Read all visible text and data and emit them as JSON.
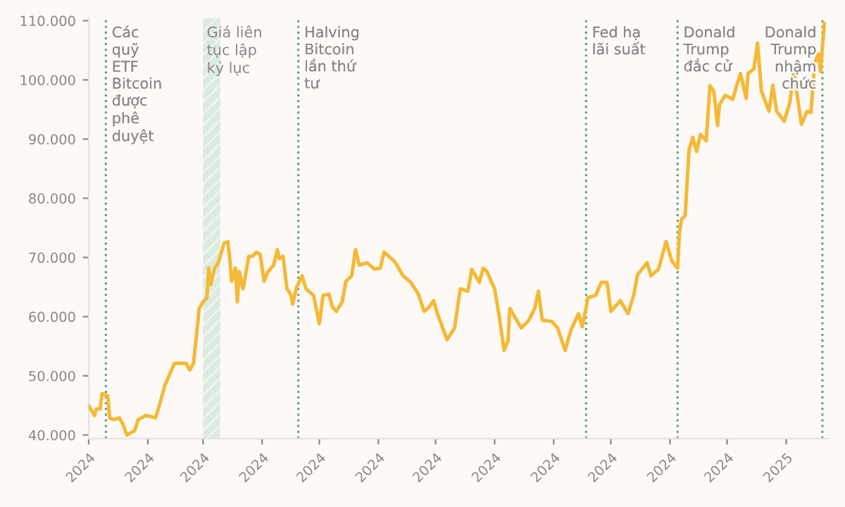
{
  "chart_data": {
    "type": "line",
    "x": [
      "2024-01-01",
      "2024-01-04",
      "2024-01-05",
      "2024-01-07",
      "2024-01-08",
      "2024-01-11",
      "2024-01-12",
      "2024-01-14",
      "2024-01-17",
      "2024-01-19",
      "2024-01-21",
      "2024-01-25",
      "2024-01-27",
      "2024-01-31",
      "2024-02-05",
      "2024-02-07",
      "2024-02-10",
      "2024-02-12",
      "2024-02-15",
      "2024-02-21",
      "2024-02-23",
      "2024-02-25",
      "2024-02-28",
      "2024-03-01",
      "2024-03-03",
      "2024-03-04",
      "2024-03-05",
      "2024-03-07",
      "2024-03-09",
      "2024-03-12",
      "2024-03-14",
      "2024-03-15",
      "2024-03-16",
      "2024-03-18",
      "2024-03-19",
      "2024-03-20",
      "2024-03-22",
      "2024-03-25",
      "2024-03-27",
      "2024-03-29",
      "2024-03-31",
      "2024-04-02",
      "2024-04-04",
      "2024-04-07",
      "2024-04-09",
      "2024-04-10",
      "2024-04-12",
      "2024-04-14",
      "2024-04-16",
      "2024-04-17",
      "2024-04-19",
      "2024-04-22",
      "2024-04-24",
      "2024-04-28",
      "2024-05-01",
      "2024-05-03",
      "2024-05-06",
      "2024-05-08",
      "2024-05-10",
      "2024-05-13",
      "2024-05-15",
      "2024-05-18",
      "2024-05-20",
      "2024-05-22",
      "2024-05-26",
      "2024-05-30",
      "2024-06-02",
      "2024-06-04",
      "2024-06-08",
      "2024-06-10",
      "2024-06-14",
      "2024-06-18",
      "2024-06-22",
      "2024-06-25",
      "2024-06-27",
      "2024-06-30",
      "2024-07-02",
      "2024-07-06",
      "2024-07-07",
      "2024-07-11",
      "2024-07-14",
      "2024-07-18",
      "2024-07-20",
      "2024-07-24",
      "2024-07-26",
      "2024-07-28",
      "2024-08-01",
      "2024-08-03",
      "2024-08-06",
      "2024-08-08",
      "2024-08-09",
      "2024-08-12",
      "2024-08-15",
      "2024-08-19",
      "2024-08-22",
      "2024-08-24",
      "2024-08-26",
      "2024-08-31",
      "2024-09-03",
      "2024-09-07",
      "2024-09-10",
      "2024-09-14",
      "2024-09-16",
      "2024-09-19",
      "2024-09-23",
      "2024-09-26",
      "2024-09-29",
      "2024-10-01",
      "2024-10-06",
      "2024-10-10",
      "2024-10-13",
      "2024-10-15",
      "2024-10-20",
      "2024-10-22",
      "2024-10-26",
      "2024-10-30",
      "2024-11-02",
      "2024-11-05",
      "2024-11-06",
      "2024-11-07",
      "2024-11-09",
      "2024-11-11",
      "2024-11-13",
      "2024-11-15",
      "2024-11-17",
      "2024-11-20",
      "2024-11-22",
      "2024-11-24",
      "2024-11-26",
      "2024-11-27",
      "2024-11-30",
      "2024-12-04",
      "2024-12-06",
      "2024-12-08",
      "2024-12-11",
      "2024-12-12",
      "2024-12-15",
      "2024-12-17",
      "2024-12-19",
      "2024-12-23",
      "2024-12-25",
      "2024-12-27",
      "2024-12-31",
      "2025-01-03",
      "2025-01-05",
      "2025-01-09",
      "2025-01-12",
      "2025-01-14",
      "2025-01-16",
      "2025-01-18",
      "2025-01-19",
      "2025-01-21"
    ],
    "series": [
      {
        "color": "#f5b935",
        "values": [
          44900,
          43300,
          44400,
          44400,
          47000,
          46600,
          42900,
          42600,
          42900,
          41800,
          40000,
          40700,
          42600,
          43300,
          42900,
          44900,
          48400,
          49900,
          52100,
          52100,
          51000,
          52100,
          61400,
          62500,
          63200,
          68200,
          65400,
          68200,
          69100,
          72400,
          72700,
          69800,
          66000,
          68200,
          62500,
          67600,
          64700,
          70200,
          70200,
          70900,
          70500,
          66000,
          67600,
          68700,
          71300,
          69800,
          70200,
          64700,
          63800,
          62100,
          64900,
          66900,
          64700,
          63600,
          58800,
          63600,
          63800,
          61600,
          60900,
          62500,
          66000,
          66900,
          71300,
          68700,
          69100,
          68000,
          68200,
          70900,
          69800,
          69100,
          66900,
          65800,
          63800,
          60900,
          61400,
          62700,
          60500,
          57000,
          56100,
          58100,
          64700,
          64300,
          68000,
          65800,
          68200,
          67600,
          64700,
          60900,
          54300,
          55900,
          61400,
          59700,
          58100,
          59400,
          61400,
          64300,
          59400,
          59200,
          58100,
          54300,
          57700,
          60500,
          58300,
          63200,
          63600,
          65800,
          65800,
          60900,
          62700,
          60500,
          63600,
          67100,
          69100,
          66900,
          68000,
          72700,
          69400,
          68200,
          74200,
          76400,
          77100,
          88100,
          90300,
          87900,
          90800,
          89700,
          99000,
          98100,
          92300,
          95800,
          97400,
          96700,
          99000,
          101100,
          96900,
          101100,
          101800,
          106200,
          98100,
          94700,
          99100,
          94700,
          93000,
          96300,
          101400,
          92500,
          94700,
          94500,
          102900,
          104400,
          101400,
          109500
        ]
      }
    ],
    "xlim": [
      "2024-01-01",
      "2025-01-23"
    ],
    "xticks": [
      {
        "value": "2024-01-01",
        "label": "2024"
      },
      {
        "value": "2024-02-01",
        "label": "2024"
      },
      {
        "value": "2024-03-01",
        "label": "2024"
      },
      {
        "value": "2024-04-01",
        "label": "2024"
      },
      {
        "value": "2024-05-01",
        "label": "2024"
      },
      {
        "value": "2024-06-01",
        "label": "2024"
      },
      {
        "value": "2024-07-01",
        "label": "2024"
      },
      {
        "value": "2024-08-01",
        "label": "2024"
      },
      {
        "value": "2024-09-01",
        "label": "2024"
      },
      {
        "value": "2024-10-01",
        "label": "2024"
      },
      {
        "value": "2024-11-01",
        "label": "2024"
      },
      {
        "value": "2024-12-01",
        "label": "2024"
      },
      {
        "value": "2025-01-01",
        "label": "2025"
      }
    ],
    "ylim": [
      39400,
      110500
    ],
    "yticks": [
      {
        "value": 40000,
        "label": "40.000"
      },
      {
        "value": 50000,
        "label": "50.000"
      },
      {
        "value": 60000,
        "label": "60.000"
      },
      {
        "value": 70000,
        "label": "70.000"
      },
      {
        "value": 80000,
        "label": "80.000"
      },
      {
        "value": 90000,
        "label": "90.000"
      },
      {
        "value": 100000,
        "label": "100.000"
      },
      {
        "value": 110000,
        "label": "110.000"
      }
    ],
    "ref_lines": [
      {
        "axis": "x",
        "value": "2024-01-10",
        "label": "Các\nquỹ\nETF\nBitcoin\nđược\nphê\nduyệt",
        "color": "#5f9f82",
        "line_style": "dotted"
      },
      {
        "axis": "x",
        "value": "2024-04-20",
        "label": "Halving\nBitcoin\nlần thứ\ntư",
        "color": "#5f9f82",
        "line_style": "dotted"
      },
      {
        "axis": "x",
        "value": "2024-09-18",
        "label": "Fed hạ\nlãi suất",
        "color": "#5f9f82",
        "line_style": "dotted"
      },
      {
        "axis": "x",
        "value": "2024-11-05",
        "label": "Donald\nTrump\nđắc cử",
        "color": "#5f9f82",
        "line_style": "dotted"
      },
      {
        "axis": "x",
        "value": "2025-01-20",
        "label": "Donald\nTrump\nnhậm\nchức",
        "color": "#5f9f82",
        "line_style": "dotted"
      }
    ],
    "bands": [
      {
        "axis": "x",
        "from": "2024-03-01",
        "to": "2024-03-10",
        "label": "Giá liên\ntục lập\nkỷ lục",
        "color": "#dcebdd"
      }
    ],
    "grid": false
  }
}
